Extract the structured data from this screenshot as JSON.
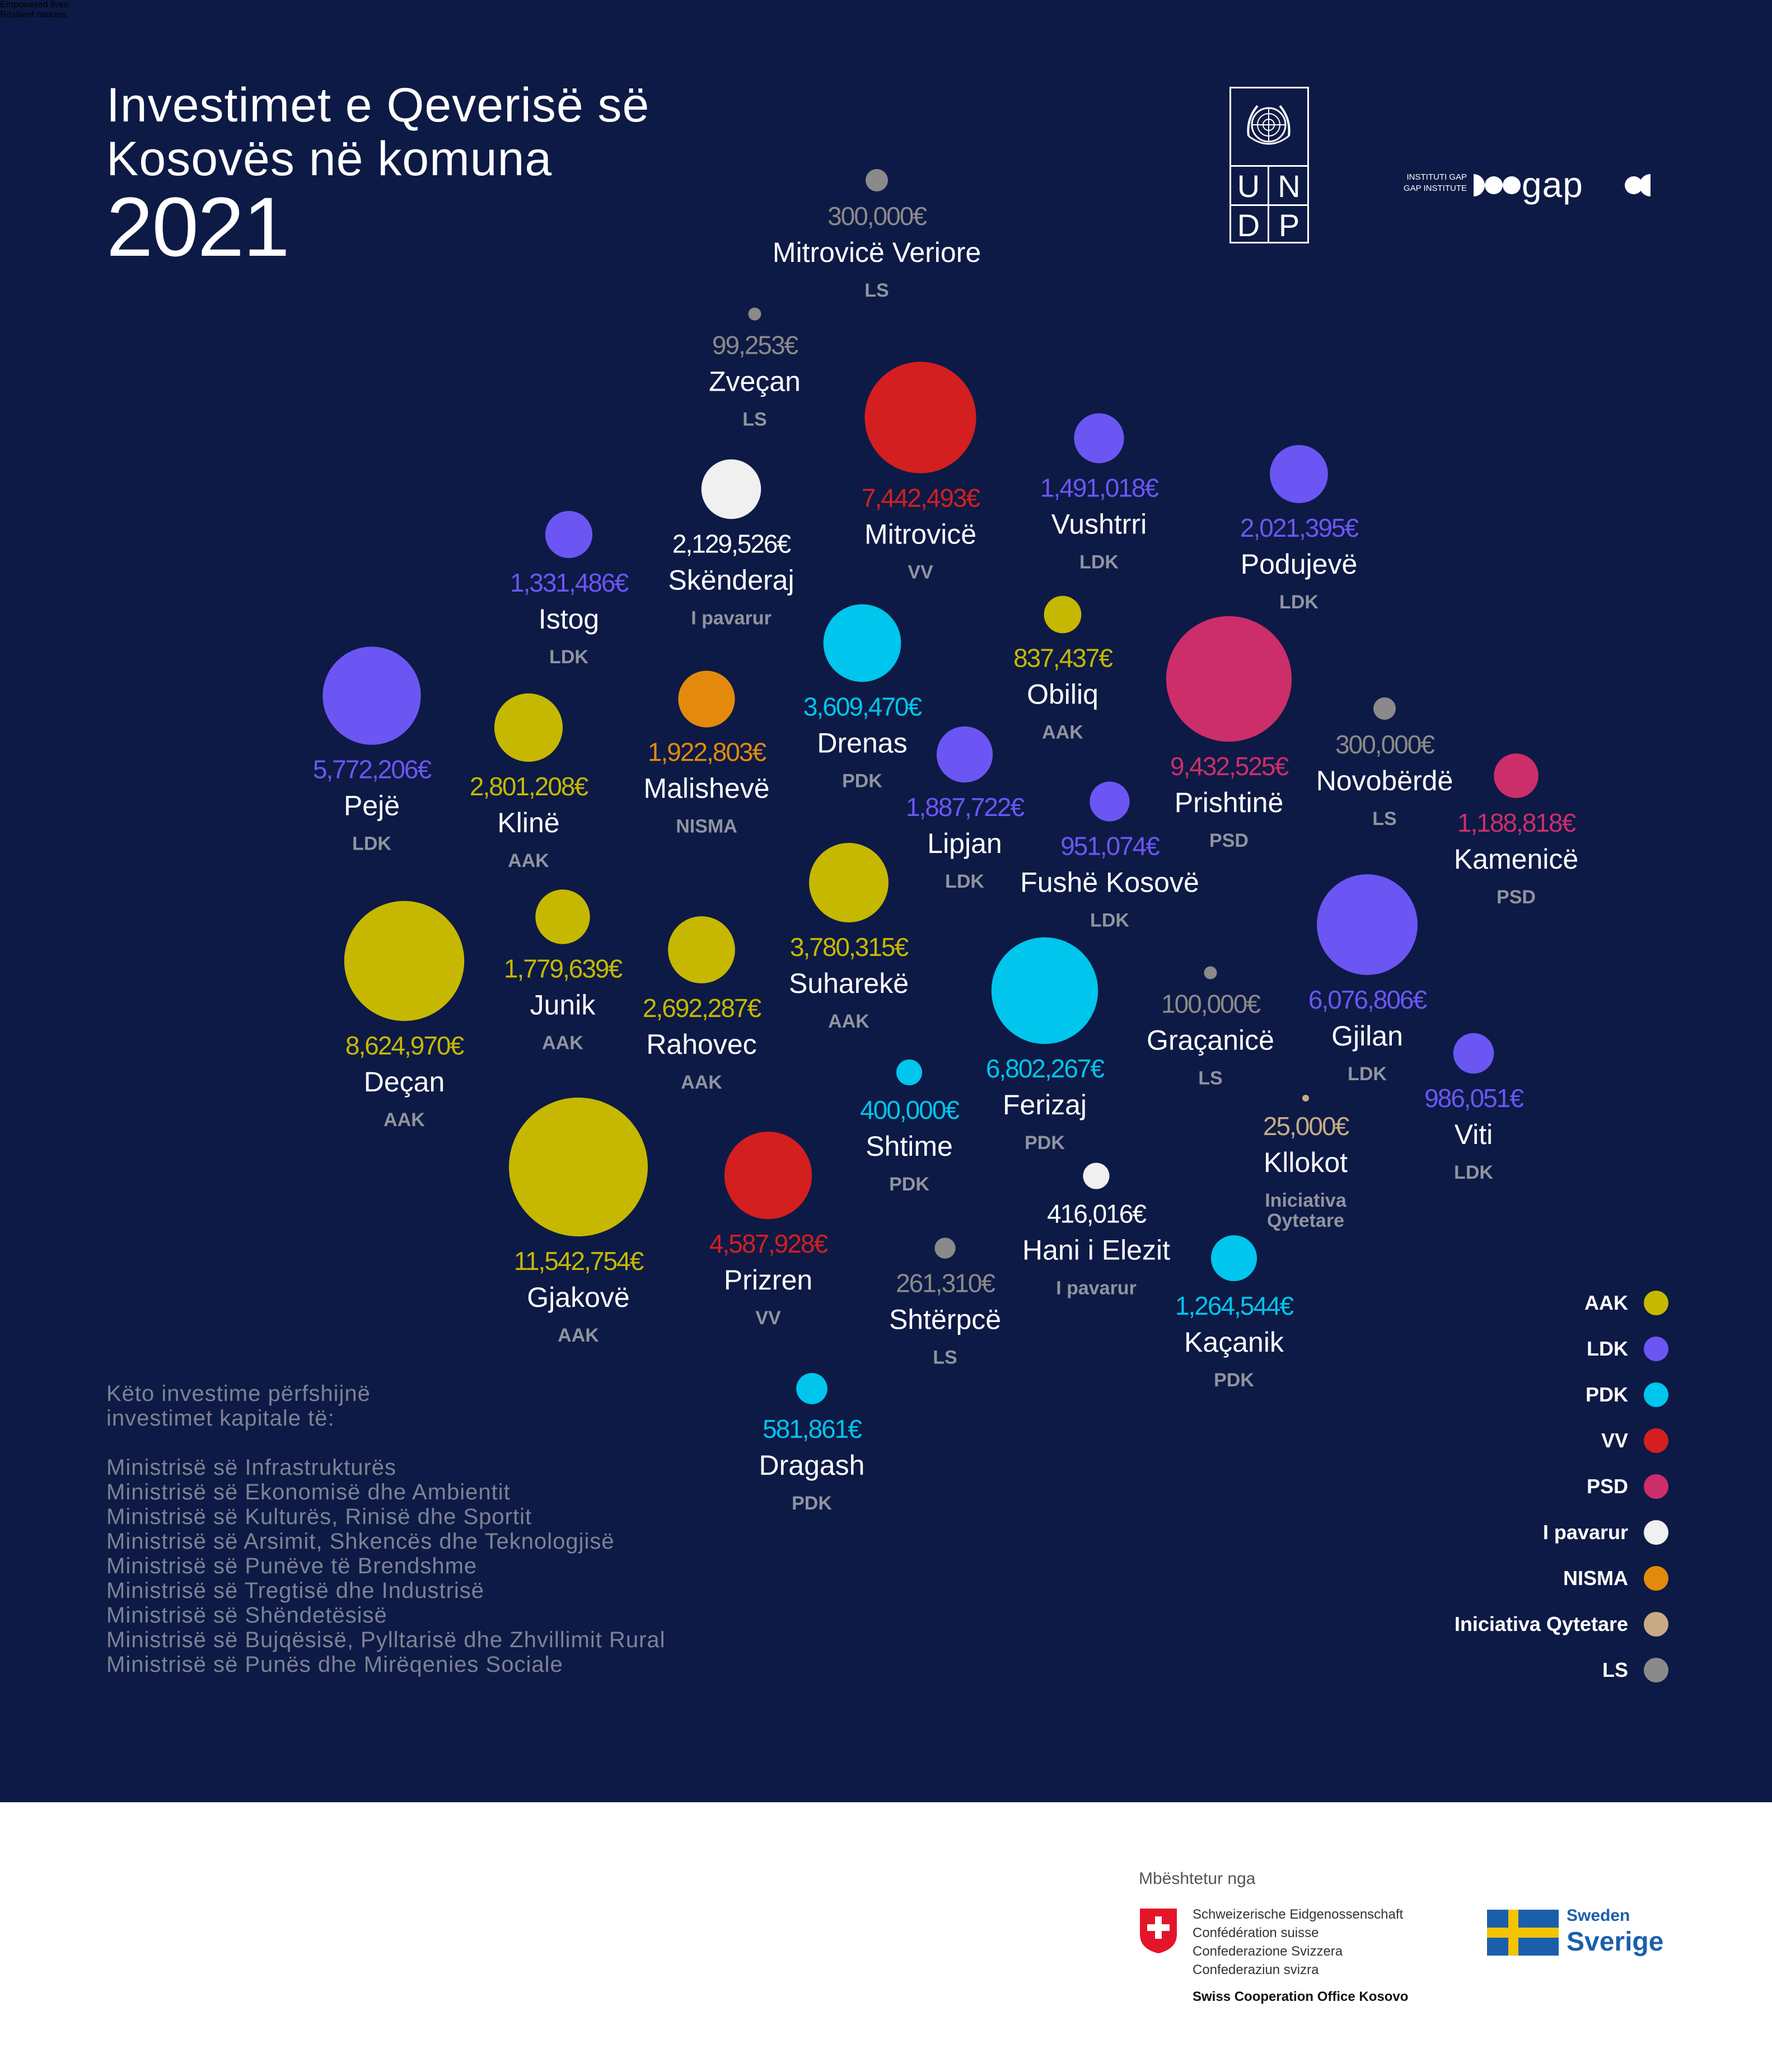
{
  "header": {
    "title_line1": "Investimet e Qeverisë së",
    "title_line2": "Kosovës në komuna",
    "year": "2021"
  },
  "logos": {
    "undp_letters": [
      "U",
      "N",
      "D",
      "P"
    ],
    "undp_tagline_1": "Empowered lives.",
    "undp_tagline_2": "Resilient nations.",
    "gap_small_1": "INSTITUTI GAP",
    "gap_small_2": "GAP INSTITUTE",
    "gap_word": "gap"
  },
  "chart_data": {
    "type": "bubble",
    "title": "Investimet e Qeverisë së Kosovës në komuna 2021",
    "unit": "€",
    "party_colors": {
      "AAK": "#c6b800",
      "LDK": "#6b56f4",
      "PDK": "#00c5ec",
      "VV": "#d31f1f",
      "PSD": "#cc2e6a",
      "I pavarur": "#f0f0f0",
      "NISMA": "#e38a0c",
      "Iniciativa Qytetare": "#c8ab86",
      "LS": "#8a8a8a"
    },
    "municipalities": [
      {
        "name": "Mitrovicë Veriore",
        "amount_label": "300,000€",
        "value": 300000,
        "party": "LS"
      },
      {
        "name": "Zveçan",
        "amount_label": "99,253€",
        "value": 99253,
        "party": "LS"
      },
      {
        "name": "Mitrovicë",
        "amount_label": "7,442,493€",
        "value": 7442493,
        "party": "VV"
      },
      {
        "name": "Vushtrri",
        "amount_label": "1,491,018€",
        "value": 1491018,
        "party": "LDK"
      },
      {
        "name": "Podujevë",
        "amount_label": "2,021,395€",
        "value": 2021395,
        "party": "LDK"
      },
      {
        "name": "Skënderaj",
        "amount_label": "2,129,526€",
        "value": 2129526,
        "party": "I pavarur"
      },
      {
        "name": "Istog",
        "amount_label": "1,331,486€",
        "value": 1331486,
        "party": "LDK"
      },
      {
        "name": "Drenas",
        "amount_label": "3,609,470€",
        "value": 3609470,
        "party": "PDK"
      },
      {
        "name": "Obiliq",
        "amount_label": "837,437€",
        "value": 837437,
        "party": "AAK"
      },
      {
        "name": "Prishtinë",
        "amount_label": "9,432,525€",
        "value": 9432525,
        "party": "PSD"
      },
      {
        "name": "Novobërdë",
        "amount_label": "300,000€",
        "value": 300000,
        "party": "LS"
      },
      {
        "name": "Kamenicë",
        "amount_label": "1,188,818€",
        "value": 1188818,
        "party": "PSD"
      },
      {
        "name": "Pejë",
        "amount_label": "5,772,206€",
        "value": 5772206,
        "party": "LDK"
      },
      {
        "name": "Klinë",
        "amount_label": "2,801,208€",
        "value": 2801208,
        "party": "AAK"
      },
      {
        "name": "Malishevë",
        "amount_label": "1,922,803€",
        "value": 1922803,
        "party": "NISMA"
      },
      {
        "name": "Lipjan",
        "amount_label": "1,887,722€",
        "value": 1887722,
        "party": "LDK"
      },
      {
        "name": "Fushë Kosovë",
        "amount_label": "951,074€",
        "value": 951074,
        "party": "LDK"
      },
      {
        "name": "Deçan",
        "amount_label": "8,624,970€",
        "value": 8624970,
        "party": "AAK"
      },
      {
        "name": "Junik",
        "amount_label": "1,779,639€",
        "value": 1779639,
        "party": "AAK"
      },
      {
        "name": "Rahovec",
        "amount_label": "2,692,287€",
        "value": 2692287,
        "party": "AAK"
      },
      {
        "name": "Suharekë",
        "amount_label": "3,780,315€",
        "value": 3780315,
        "party": "AAK"
      },
      {
        "name": "Ferizaj",
        "amount_label": "6,802,267€",
        "value": 6802267,
        "party": "PDK"
      },
      {
        "name": "Graçanicë",
        "amount_label": "100,000€",
        "value": 100000,
        "party": "LS"
      },
      {
        "name": "Gjilan",
        "amount_label": "6,076,806€",
        "value": 6076806,
        "party": "LDK"
      },
      {
        "name": "Viti",
        "amount_label": "986,051€",
        "value": 986051,
        "party": "LDK"
      },
      {
        "name": "Shtime",
        "amount_label": "400,000€",
        "value": 400000,
        "party": "PDK"
      },
      {
        "name": "Kllokot",
        "amount_label": "25,000€",
        "value": 25000,
        "party": "Iniciativa Qytetare"
      },
      {
        "name": "Gjakovë",
        "amount_label": "11,542,754€",
        "value": 11542754,
        "party": "AAK"
      },
      {
        "name": "Prizren",
        "amount_label": "4,587,928€",
        "value": 4587928,
        "party": "VV"
      },
      {
        "name": "Hani i Elezit",
        "amount_label": "416,016€",
        "value": 416016,
        "party": "I pavarur"
      },
      {
        "name": "Shtërpcë",
        "amount_label": "261,310€",
        "value": 261310,
        "party": "LS"
      },
      {
        "name": "Kaçanik",
        "amount_label": "1,264,544€",
        "value": 1264544,
        "party": "PDK"
      },
      {
        "name": "Dragash",
        "amount_label": "581,861€",
        "value": 581861,
        "party": "PDK"
      }
    ]
  },
  "notes": {
    "intro_line1": "Këto investime përfshijnë",
    "intro_line2": "investimet kapitale të:",
    "ministries": [
      "Ministrisë së Infrastrukturës",
      "Ministrisë së Ekonomisë dhe Ambientit",
      "Ministrisë së Kulturës, Rinisë dhe Sportit",
      "Ministrisë së Arsimit, Shkencës dhe Teknologjisë",
      "Ministrisë së Punëve të Brendshme",
      "Ministrisë së Tregtisë dhe Industrisë",
      "Ministrisë së Shëndetësisë",
      "Ministrisë së Bujqësisë, Pylltarisë dhe Zhvillimit Rural",
      "Ministrisë së Punës dhe Mirëqenies Sociale"
    ]
  },
  "legend": [
    {
      "label": "AAK",
      "color": "#c6b800"
    },
    {
      "label": "LDK",
      "color": "#6b56f4"
    },
    {
      "label": "PDK",
      "color": "#00c5ec"
    },
    {
      "label": "VV",
      "color": "#d31f1f"
    },
    {
      "label": "PSD",
      "color": "#cc2e6a"
    },
    {
      "label": "I pavarur",
      "color": "#f0f0f0"
    },
    {
      "label": "NISMA",
      "color": "#e38a0c"
    },
    {
      "label": "Iniciativa Qytetare",
      "color": "#c8ab86"
    },
    {
      "label": "LS",
      "color": "#8a8a8a"
    }
  ],
  "footer": {
    "supported_by": "Mbështetur nga",
    "swiss_lines": [
      "Schweizerische Eidgenossenschaft",
      "Confédération suisse",
      "Confederazione Svizzera",
      "Confederaziun svizra"
    ],
    "swiss_office": "Swiss Cooperation Office Kosovo",
    "sweden_small": "Sweden",
    "sweden_big": "Sverige"
  }
}
